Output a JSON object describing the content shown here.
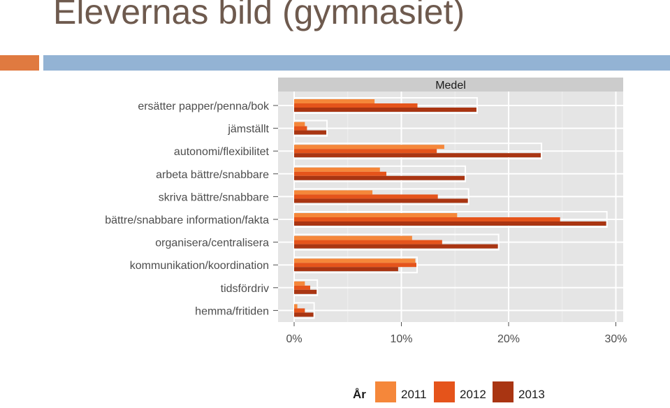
{
  "slide": {
    "title": "Elevernas bild (gymnasiet)"
  },
  "colors": {
    "title": "#6e5a4e",
    "accent_orange": "#e07a40",
    "accent_blue": "#93b3d4",
    "panel_bg": "#e5e5e5",
    "strip_bg": "#cccccc"
  },
  "chart_data": {
    "type": "bar",
    "orientation": "horizontal",
    "facet_label": "Medel",
    "categories": [
      "ersätter papper/penna/bok",
      "jämställt",
      "autonomi/flexibilitet",
      "arbeta bättre/snabbare",
      "skriva bättre/snabbare",
      "bättre/snabbare information/fakta",
      "organisera/centralisera",
      "kommunikation/koordination",
      "tidsfördriv",
      "hemma/fritiden"
    ],
    "legend_title": "År",
    "series": [
      {
        "name": "2011",
        "color": "#f5873a",
        "values": [
          7.5,
          1.0,
          14.0,
          8.0,
          7.3,
          15.2,
          11.0,
          11.3,
          1.0,
          0.3
        ]
      },
      {
        "name": "2012",
        "color": "#e5541b",
        "values": [
          11.5,
          1.2,
          13.3,
          8.6,
          13.4,
          24.8,
          13.8,
          11.4,
          1.5,
          1.0
        ]
      },
      {
        "name": "2013",
        "color": "#a93512",
        "values": [
          17.0,
          3.0,
          23.0,
          15.9,
          16.2,
          29.1,
          19.0,
          9.7,
          2.1,
          1.8
        ]
      }
    ],
    "xlim": [
      0,
      31.5
    ],
    "x_ticks": [
      0,
      10,
      20,
      30
    ],
    "x_tick_labels": [
      "0%",
      "10%",
      "20%",
      "30%"
    ],
    "xlabel": "",
    "ylabel": "",
    "grid": true,
    "legend_position": "bottom"
  }
}
